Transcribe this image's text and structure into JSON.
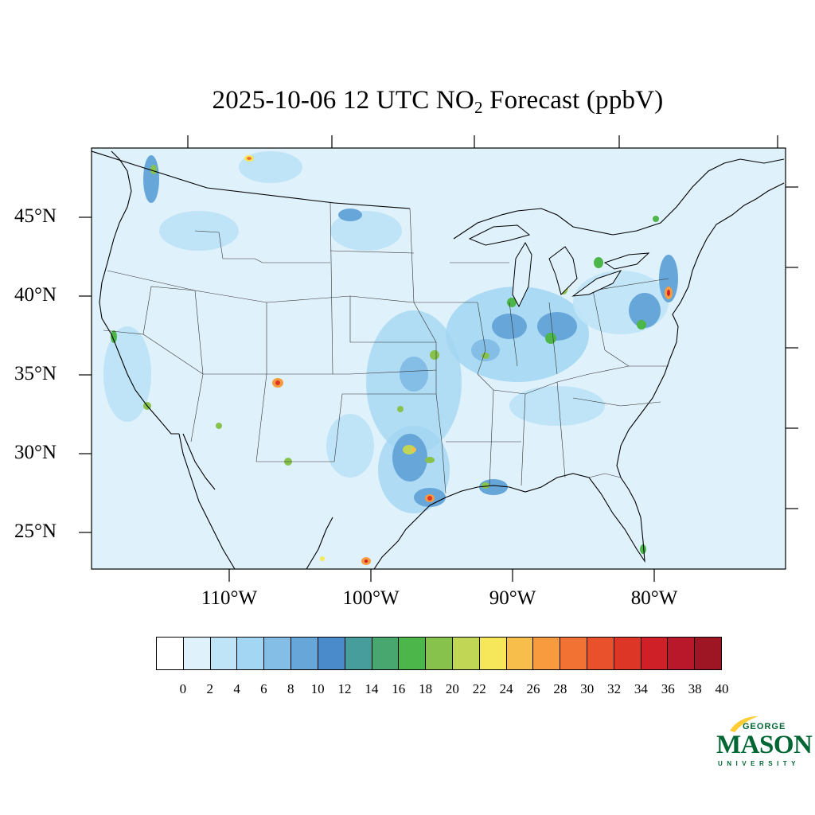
{
  "title": {
    "main": "2025-10-06 12 UTC NO",
    "subscript": "2",
    "rest": " Forecast (ppbV)"
  },
  "latitude_labels": [
    "45°N",
    "40°N",
    "35°N",
    "30°N",
    "25°N"
  ],
  "longitude_labels": [
    "110°W",
    "100°W",
    "90°W",
    "80°W"
  ],
  "colorbar": {
    "ticks": [
      "0",
      "2",
      "4",
      "6",
      "8",
      "10",
      "12",
      "14",
      "16",
      "18",
      "20",
      "22",
      "24",
      "26",
      "28",
      "30",
      "32",
      "34",
      "36",
      "38",
      "40"
    ],
    "colors": [
      "#ffffff",
      "#dff1fb",
      "#bfe4f7",
      "#a2d6f2",
      "#84bde5",
      "#66a6d9",
      "#4a8bcb",
      "#479d9b",
      "#48a66f",
      "#4cb64a",
      "#86c24c",
      "#c2d655",
      "#f6e65a",
      "#f7be4c",
      "#f79b3e",
      "#f27233",
      "#e8512c",
      "#dd3627",
      "#cf2027",
      "#b9182a",
      "#9e1623"
    ]
  },
  "map": {
    "background_color": "#dff1fb"
  },
  "logo": {
    "line1": "GEORGE",
    "line2": "MASON",
    "line3": "UNIVERSITY",
    "brand_color": "#006633",
    "accent_color": "#ffcc33"
  }
}
